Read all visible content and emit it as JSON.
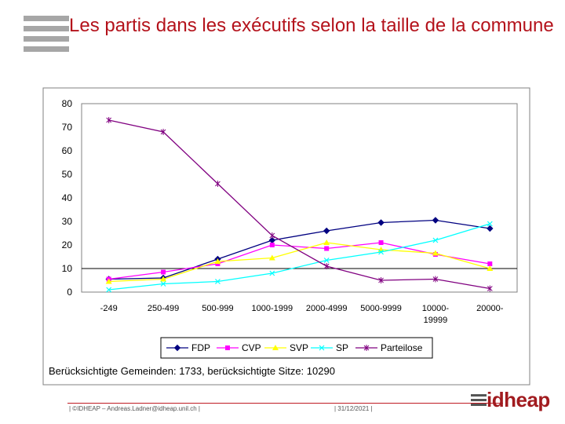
{
  "title": "Les partis dans les exécutifs selon la taille de la commune",
  "note": "Berücksichtigte Gemeinden: 1733, berücksichtigte Sitze: 10290",
  "footer": {
    "left": "| ©IDHEAP – Andreas.Ladner@idheap.unil.ch |",
    "date": "| 31/12/2021 |"
  },
  "logo": {
    "text": "idheap"
  },
  "colors": {
    "title": "#b4121b",
    "plot_bg": "#ffffff",
    "grid": "#000000"
  },
  "chart_data": {
    "type": "line",
    "title": "",
    "xlabel": "",
    "ylabel": "",
    "ylim": [
      0,
      80
    ],
    "yticks": [
      0,
      10,
      20,
      30,
      40,
      50,
      60,
      70,
      80
    ],
    "categories": [
      [
        "-249"
      ],
      [
        "250-499"
      ],
      [
        "500-999"
      ],
      [
        "1000-1999"
      ],
      [
        "2000-4999"
      ],
      [
        "5000-9999"
      ],
      [
        "10000-",
        "19999"
      ],
      [
        "20000-"
      ]
    ],
    "series": [
      {
        "name": "FDP",
        "color": "#000080",
        "marker": "diamond",
        "values": [
          5.5,
          6,
          14,
          22,
          26,
          29.5,
          30.5,
          27
        ]
      },
      {
        "name": "CVP",
        "color": "#ff00ff",
        "marker": "square",
        "values": [
          5.5,
          8.5,
          12,
          20,
          18.5,
          21,
          16,
          12
        ]
      },
      {
        "name": "SVP",
        "color": "#ffff00",
        "marker": "triangle",
        "values": [
          4.5,
          5.5,
          13,
          14.5,
          21,
          18,
          16.5,
          10
        ]
      },
      {
        "name": "SP",
        "color": "#00ffff",
        "marker": "x",
        "values": [
          1,
          3.5,
          4.5,
          8,
          13.5,
          17,
          22,
          29
        ]
      },
      {
        "name": "Parteilose",
        "color": "#800080",
        "marker": "star",
        "values": [
          73,
          68,
          46,
          24,
          11,
          5,
          5.5,
          1.5
        ]
      }
    ],
    "legend": "bottom"
  }
}
